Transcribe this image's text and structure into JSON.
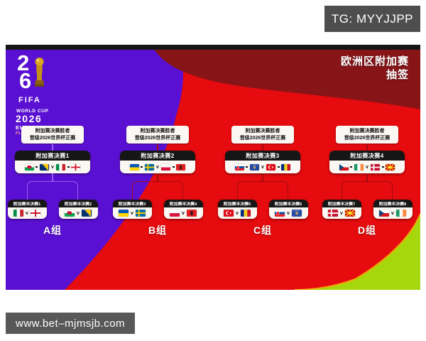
{
  "badge": {
    "text": "TG: MYYJJPP"
  },
  "draw_title": {
    "line1": "欧洲区附加赛",
    "line2": "抽签"
  },
  "logo": {
    "digit_top": "2",
    "digit_bottom": "6",
    "fifa": "FIFA",
    "world_cup": "WORLD CUP",
    "year": "2026",
    "european": "EUROPEAN",
    "playoff_draw": "PLAY-OFF DRAW"
  },
  "qualify_note": {
    "line1": "附加赛决赛胜者",
    "line2": "晋级2026世界杯正赛"
  },
  "vs_label": "v",
  "watermark": {
    "text": "www.bet–mjmsjb.com"
  },
  "colors": {
    "purple": "#5a10d2",
    "red": "#e50b0e",
    "dark_red": "#871518",
    "lime": "#a6d70c",
    "lime_edge": "#f0a90a",
    "bar_black": "#161616",
    "box_white": "#fbf8f3",
    "badge_gray": "#4e4e4e",
    "connector_on_purple": "#9a5cf2",
    "connector_on_red": "#a30d10"
  },
  "groups": [
    {
      "label": "A组",
      "connector": "#9a5cf2",
      "final": {
        "title": "附加赛决赛1",
        "pair1": [
          "wales",
          "bosnia"
        ],
        "pair2": [
          "italy",
          "england"
        ]
      },
      "semifinals": [
        {
          "title": "附加赛半决赛1",
          "home": "italy",
          "away": "england"
        },
        {
          "title": "附加赛半决赛2",
          "home": "wales",
          "away": "bosnia"
        }
      ]
    },
    {
      "label": "B组",
      "connector": "#a30d10",
      "final": {
        "title": "附加赛决赛2",
        "pair1": [
          "ukraine",
          "sweden"
        ],
        "pair2": [
          "poland",
          "albania"
        ]
      },
      "semifinals": [
        {
          "title": "附加赛半决赛3",
          "home": "ukraine",
          "away": "sweden"
        },
        {
          "title": "附加赛半决赛4",
          "home": "poland",
          "away": "albania"
        }
      ]
    },
    {
      "label": "C组",
      "connector": "#a30d10",
      "final": {
        "title": "附加赛决赛3",
        "pair1": [
          "slovakia",
          "kosovo"
        ],
        "pair2": [
          "turkey",
          "romania"
        ]
      },
      "semifinals": [
        {
          "title": "附加赛半决赛5",
          "home": "turkey",
          "away": "romania"
        },
        {
          "title": "附加赛半决赛6",
          "home": "slovakia",
          "away": "kosovo"
        }
      ]
    },
    {
      "label": "D组",
      "connector": "#a30d10",
      "final": {
        "title": "附加赛决赛4",
        "pair1": [
          "czech-republic",
          "ireland"
        ],
        "pair2": [
          "denmark",
          "north-macedonia"
        ]
      },
      "semifinals": [
        {
          "title": "附加赛半决赛7",
          "home": "denmark",
          "away": "north-macedonia"
        },
        {
          "title": "附加赛半决赛8",
          "home": "czech-republic",
          "away": "ireland"
        }
      ]
    }
  ]
}
